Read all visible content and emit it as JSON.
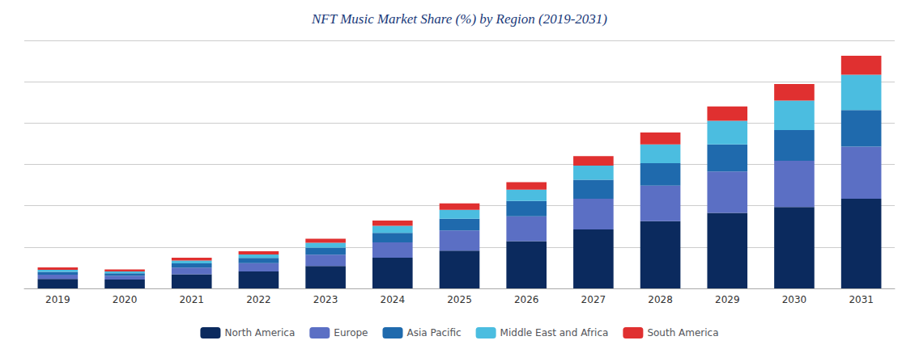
{
  "chart_data": {
    "type": "bar",
    "title": "NFT Music Market Share (%) by Region (2019-2031)",
    "categories": [
      "2019",
      "2020",
      "2021",
      "2022",
      "2023",
      "2024",
      "2025",
      "2026",
      "2027",
      "2028",
      "2029",
      "2030",
      "2031"
    ],
    "series": [
      {
        "name": "North America",
        "color": "#0b2a5e",
        "values": [
          4.0,
          3.8,
          6.0,
          7.2,
          9.5,
          13.0,
          16.0,
          20.0,
          25.0,
          28.5,
          32.0,
          34.5,
          38.0
        ]
      },
      {
        "name": "Europe",
        "color": "#5b6fc4",
        "values": [
          1.8,
          1.6,
          2.8,
          3.5,
          4.8,
          6.5,
          8.5,
          10.5,
          13.0,
          15.0,
          17.5,
          19.5,
          22.0
        ]
      },
      {
        "name": "Asia Pacific",
        "color": "#1f6aad",
        "values": [
          1.2,
          1.0,
          1.8,
          2.2,
          3.0,
          4.0,
          5.0,
          6.5,
          8.0,
          9.5,
          11.5,
          13.0,
          15.5
        ]
      },
      {
        "name": "Middle East and Africa",
        "color": "#4bbde0",
        "values": [
          0.9,
          0.8,
          1.2,
          1.5,
          2.0,
          3.0,
          3.8,
          4.8,
          6.0,
          8.0,
          10.0,
          12.5,
          15.0
        ]
      },
      {
        "name": "South America",
        "color": "#e03030",
        "values": [
          1.0,
          0.8,
          1.2,
          1.3,
          1.7,
          2.2,
          2.7,
          3.2,
          4.0,
          5.0,
          6.0,
          7.0,
          8.0
        ]
      }
    ],
    "stacked": true,
    "ylim": [
      0,
      105
    ],
    "yticks": [
      0,
      17.5,
      35,
      52.5,
      70,
      87.5,
      105
    ],
    "tick_labels": "x",
    "grid": true,
    "legend": "bottom"
  }
}
